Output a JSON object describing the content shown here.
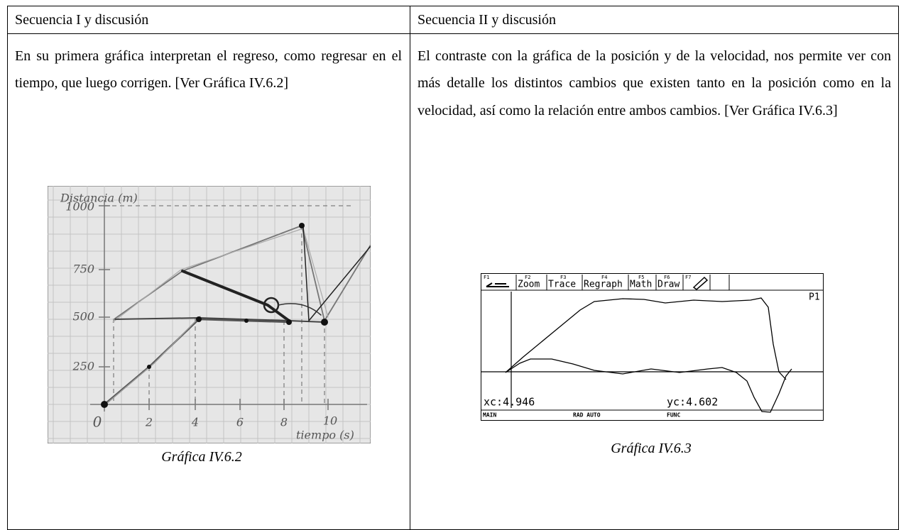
{
  "columns": [
    {
      "heading": "Secuencia I y discusión",
      "text": "En su primera gráfica interpretan el regreso, como regresar en el tiempo, que luego corrigen. [Ver Gráfica IV.6.2]",
      "figure": {
        "y_label": "Distancia (m)",
        "y_ticks": [
          "1000",
          "750",
          "500",
          "250"
        ],
        "x_ticks": [
          "0",
          "2",
          "4",
          "6",
          "8",
          "10"
        ],
        "x_label": "tiempo (s)"
      },
      "caption": "Gráfica IV.6.2"
    },
    {
      "heading": "Secuencia II y discusión",
      "text": "El contraste con la gráfica de la posición y de la velocidad, nos permite ver con más detalle los distintos cambios que existen tanto en la posición como en la velocidad, así como la relación entre ambos cambios. [Ver Gráfica IV.6.3]",
      "figure": {
        "function_keys": [
          "F1",
          "F2",
          "F3",
          "F4",
          "F5",
          "F6",
          "F7"
        ],
        "menu": [
          "Zoom",
          "Trace",
          "Regraph",
          "Math",
          "Draw"
        ],
        "plot": "P1",
        "xc": "xc:4.946",
        "yc": "yc:4.602",
        "status": [
          "MAIN",
          "RAD AUTO",
          "FUNC"
        ]
      },
      "caption": "Gráfica IV.6.3"
    }
  ]
}
